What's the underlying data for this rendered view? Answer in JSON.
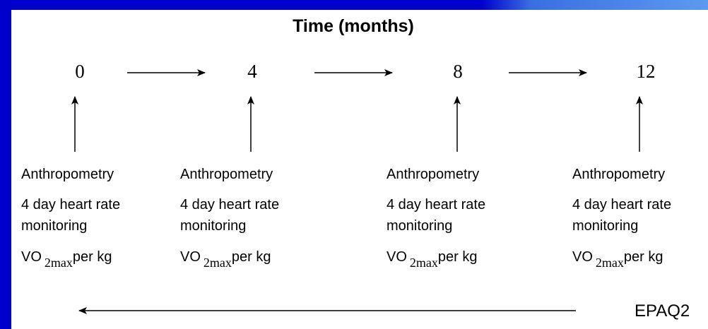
{
  "title": "Time (months)",
  "timepoints": [
    {
      "label": "0",
      "items": [
        "Anthropometry",
        "4 day heart rate",
        "monitoring"
      ],
      "vo": {
        "text": "VO",
        "subscript": "2max",
        "suffix": "per kg"
      }
    },
    {
      "label": "4",
      "items": [
        "Anthropometry",
        "4 day heart rate",
        "monitoring"
      ],
      "vo": {
        "text": "VO",
        "subscript": "2max",
        "suffix": "per kg"
      }
    },
    {
      "label": "8",
      "items": [
        "Anthropometry",
        "4 day heart rate",
        "monitoring"
      ],
      "vo": {
        "text": "VO",
        "subscript": "2max",
        "suffix": "per kg"
      }
    },
    {
      "label": "12",
      "items": [
        "Anthropometry",
        "4 day heart rate",
        "monitoring"
      ],
      "vo": {
        "text": "VO",
        "subscript": "2max",
        "suffix": "per kg"
      }
    }
  ],
  "footer": "EPAQ2"
}
